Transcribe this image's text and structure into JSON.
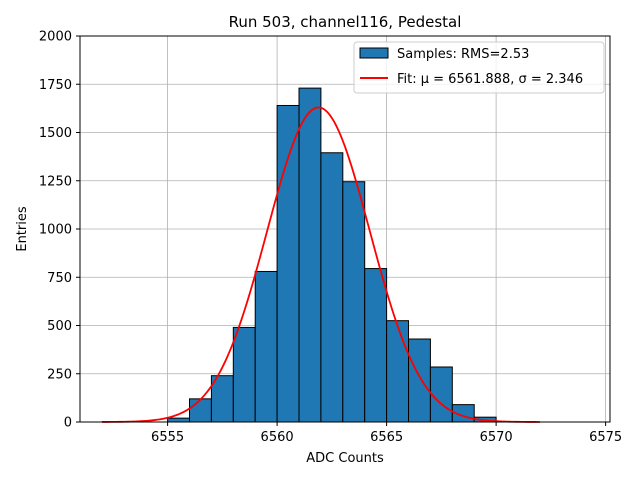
{
  "chart_data": {
    "type": "bar",
    "title": "Run 503, channel116, Pedestal",
    "xlabel": "ADC Counts",
    "ylabel": "Entries",
    "xlim": [
      6551,
      6575.2
    ],
    "ylim": [
      0,
      2000
    ],
    "grid": true,
    "legend_position": "top-right",
    "xticks": [
      6555,
      6560,
      6565,
      6570,
      6575
    ],
    "yticks": [
      0,
      250,
      500,
      750,
      1000,
      1250,
      1500,
      1750,
      2000
    ],
    "bar_color": "#1f77b4",
    "fit_color": "#ff0000",
    "bin_width": 1,
    "bins": [
      {
        "x": 6555,
        "value": 20
      },
      {
        "x": 6556,
        "value": 120
      },
      {
        "x": 6557,
        "value": 240
      },
      {
        "x": 6558,
        "value": 490
      },
      {
        "x": 6559,
        "value": 780
      },
      {
        "x": 6560,
        "value": 1640
      },
      {
        "x": 6561,
        "value": 1730
      },
      {
        "x": 6562,
        "value": 1395
      },
      {
        "x": 6563,
        "value": 1245
      },
      {
        "x": 6564,
        "value": 795
      },
      {
        "x": 6565,
        "value": 525
      },
      {
        "x": 6566,
        "value": 430
      },
      {
        "x": 6567,
        "value": 285
      },
      {
        "x": 6568,
        "value": 90
      },
      {
        "x": 6569,
        "value": 25
      }
    ],
    "fit": {
      "mu": 6561.888,
      "sigma": 2.346,
      "amplitude": 1630,
      "x_range": [
        6552,
        6572
      ]
    },
    "legend": {
      "samples_label": "Samples: RMS=2.53",
      "fit_label": "Fit: μ = 6561.888, σ = 2.346"
    }
  }
}
